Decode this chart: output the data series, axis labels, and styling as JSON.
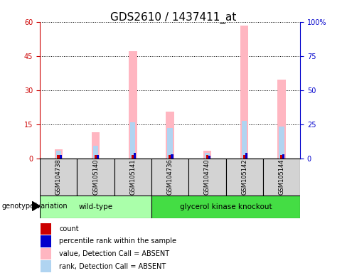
{
  "title": "GDS2610 / 1437411_at",
  "samples": [
    "GSM104738",
    "GSM105140",
    "GSM105141",
    "GSM104736",
    "GSM104740",
    "GSM105142",
    "GSM105144"
  ],
  "n_wildtype": 3,
  "n_knockout": 4,
  "count_red": [
    1.5,
    1.5,
    1.5,
    1.5,
    1.5,
    1.5,
    1.5
  ],
  "percentile_blue": [
    1.5,
    1.5,
    2.5,
    1.8,
    1.2,
    2.5,
    1.8
  ],
  "value_pink": [
    4.0,
    11.5,
    47.0,
    20.5,
    3.5,
    58.5,
    34.5
  ],
  "rank_lightblue": [
    3.5,
    5.5,
    16.0,
    13.5,
    2.5,
    16.5,
    14.0
  ],
  "ylim_left": [
    0,
    60
  ],
  "ylim_right": [
    0,
    100
  ],
  "yticks_left": [
    0,
    15,
    30,
    45,
    60
  ],
  "yticks_right": [
    0,
    25,
    50,
    75,
    100
  ],
  "ylabel_left_color": "#cc0000",
  "ylabel_right_color": "#0000cc",
  "wt_label": "wild-type",
  "ko_label": "glycerol kinase knockout",
  "wt_color": "#aaffaa",
  "ko_color": "#44dd44",
  "label_area_color": "#d3d3d3",
  "legend_items": [
    {
      "label": "count",
      "color": "#cc0000"
    },
    {
      "label": "percentile rank within the sample",
      "color": "#0000cc"
    },
    {
      "label": "value, Detection Call = ABSENT",
      "color": "#ffb6c1"
    },
    {
      "label": "rank, Detection Call = ABSENT",
      "color": "#b0d4f1"
    }
  ],
  "title_fontsize": 11,
  "tick_fontsize": 7,
  "genotype_label": "genotype/variation"
}
